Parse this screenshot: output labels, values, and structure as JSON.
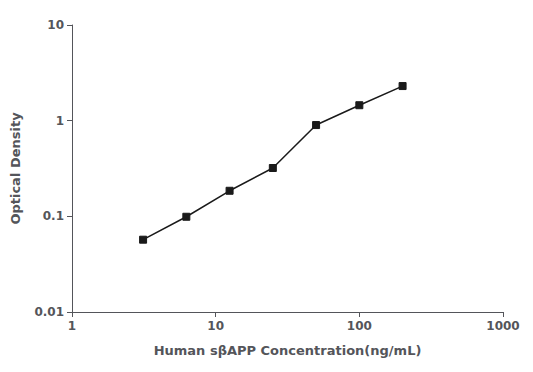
{
  "chart_data": {
    "type": "line",
    "x": [
      3.125,
      6.25,
      12.5,
      25,
      50,
      100,
      200
    ],
    "values": [
      0.057,
      0.099,
      0.185,
      0.32,
      0.9,
      1.45,
      2.3
    ],
    "xlabel": "Human sβAPP Concentration(ng/mL)",
    "ylabel": "Optical Density",
    "xlim": [
      1,
      1000
    ],
    "ylim": [
      0.01,
      10
    ],
    "xticks": [
      1,
      10,
      100,
      1000
    ],
    "yticks": [
      0.01,
      0.1,
      1,
      10
    ],
    "log": true,
    "grid": false,
    "color": "#1a1a1a",
    "marker": "square",
    "line_style": "solid"
  }
}
